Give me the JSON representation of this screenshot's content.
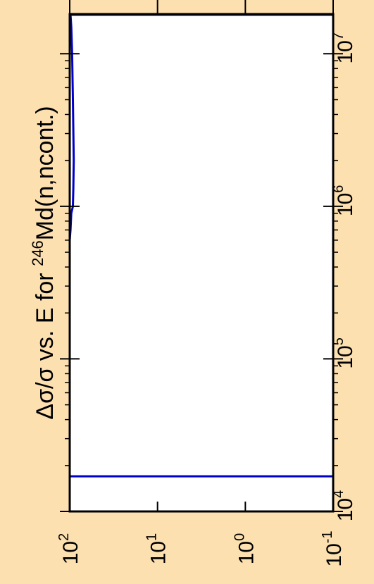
{
  "chart_data": {
    "type": "line",
    "title_parts": {
      "prefix": "Δσ/σ vs. E for ",
      "sup": "246",
      "suffix": "Md(n,ncont.)"
    },
    "x_axis": {
      "scale": "log",
      "range": [
        100,
        0.1
      ],
      "ticks": [
        {
          "value": 100,
          "base": "10",
          "exp": "2"
        },
        {
          "value": 10,
          "base": "10",
          "exp": "1"
        },
        {
          "value": 1,
          "base": "10",
          "exp": "0"
        },
        {
          "value": 0.1,
          "base": "10",
          "exp": "-1"
        }
      ]
    },
    "y_axis": {
      "scale": "log",
      "range": [
        10000,
        18000000
      ],
      "ticks": [
        {
          "value": 10000,
          "base": "10",
          "exp": "4"
        },
        {
          "value": 100000,
          "base": "10",
          "exp": "5"
        },
        {
          "value": 1000000,
          "base": "10",
          "exp": "6"
        },
        {
          "value": 10000000,
          "base": "10",
          "exp": "7"
        }
      ]
    },
    "series": [
      {
        "color": "#0000cc",
        "points": [
          {
            "x": 100,
            "y": 17000
          },
          {
            "x": 0.1,
            "y": 17000
          },
          {
            "x": 0.1,
            "y": 18000000
          },
          {
            "x": 98,
            "y": 18000000
          },
          {
            "x": 96,
            "y": 15000000
          },
          {
            "x": 94,
            "y": 10000000
          },
          {
            "x": 92,
            "y": 5000000
          },
          {
            "x": 90,
            "y": 2000000
          },
          {
            "x": 91,
            "y": 1300000
          },
          {
            "x": 92,
            "y": 1000000
          },
          {
            "x": 96,
            "y": 900000
          },
          {
            "x": 98,
            "y": 700000
          },
          {
            "x": 100,
            "y": 600000
          }
        ]
      }
    ]
  }
}
